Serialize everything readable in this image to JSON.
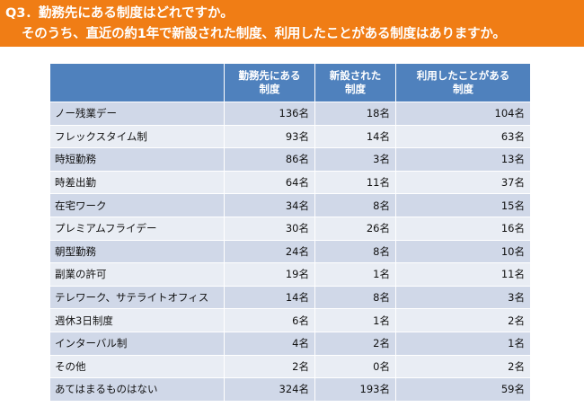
{
  "question": {
    "line1": "Q3．勤務先にある制度はどれですか。",
    "line2": "そのうち、直近の約1年で新設された制度、利用したことがある制度はありますか。"
  },
  "table": {
    "headers": [
      "",
      [
        "勤務先にある",
        "制度"
      ],
      [
        "新設された",
        "制度"
      ],
      [
        "利用したことがある",
        "制度"
      ]
    ],
    "rows": [
      [
        "ノー残業デー",
        "136名",
        "18名",
        "104名"
      ],
      [
        "フレックスタイム制",
        "93名",
        "14名",
        "63名"
      ],
      [
        "時短勤務",
        "86名",
        "3名",
        "13名"
      ],
      [
        "時差出勤",
        "64名",
        "11名",
        "37名"
      ],
      [
        "在宅ワーク",
        "34名",
        "8名",
        "15名"
      ],
      [
        "プレミアムフライデー",
        "30名",
        "26名",
        "16名"
      ],
      [
        "朝型勤務",
        "24名",
        "8名",
        "10名"
      ],
      [
        "副業の許可",
        "19名",
        "1名",
        "11名"
      ],
      [
        "テレワーク、サテライトオフィス",
        "14名",
        "8名",
        "3名"
      ],
      [
        "週休3日制度",
        "6名",
        "1名",
        "2名"
      ],
      [
        "インターバル制",
        "4名",
        "2名",
        "1名"
      ],
      [
        "その他",
        "2名",
        "0名",
        "2名"
      ],
      [
        "あてはまるものはない",
        "324名",
        "193名",
        "59名"
      ]
    ]
  },
  "colors": {
    "banner": "#f07d15",
    "header": "#4f81bd",
    "row_odd": "#d0d8e8",
    "row_even": "#e9edf4"
  }
}
